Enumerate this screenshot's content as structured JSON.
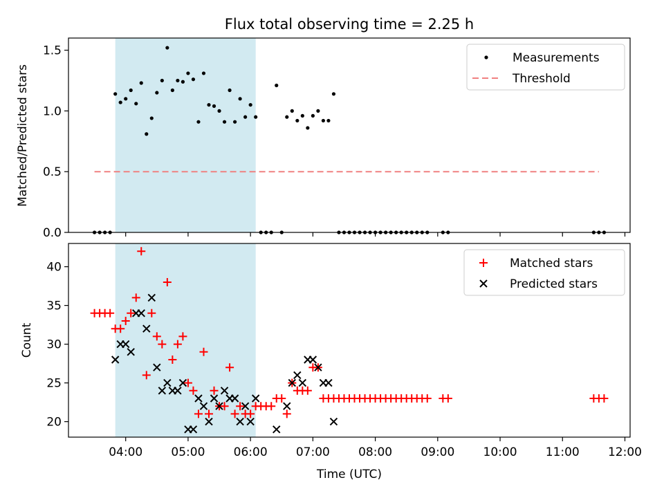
{
  "chart_data": [
    {
      "type": "scatter",
      "title": "Flux total observing time = 2.25 h",
      "xlabel": "",
      "ylabel": "Matched/Predicted stars",
      "xlim": [
        "03:05",
        "12:05"
      ],
      "ylim": [
        0,
        1.6
      ],
      "yticks": [
        0.0,
        0.5,
        1.0,
        1.5
      ],
      "ytick_labels": [
        "0.0",
        "0.5",
        "1.0",
        "1.5"
      ],
      "legend_position": "upper-right",
      "shaded_span": {
        "start": "03:50",
        "end": "06:05",
        "color": "#add8e6"
      },
      "series": [
        {
          "name": "Measurements",
          "kind": "point",
          "color": "#000000",
          "points": [
            [
              "03:30",
              0
            ],
            [
              "03:35",
              0
            ],
            [
              "03:40",
              0
            ],
            [
              "03:45",
              0
            ],
            [
              "03:50",
              1.14
            ],
            [
              "03:55",
              1.07
            ],
            [
              "04:00",
              1.1
            ],
            [
              "04:05",
              1.17
            ],
            [
              "04:10",
              1.06
            ],
            [
              "04:15",
              1.23
            ],
            [
              "04:20",
              0.81
            ],
            [
              "04:25",
              0.94
            ],
            [
              "04:30",
              1.15
            ],
            [
              "04:35",
              1.25
            ],
            [
              "04:40",
              1.52
            ],
            [
              "04:45",
              1.17
            ],
            [
              "04:50",
              1.25
            ],
            [
              "04:55",
              1.24
            ],
            [
              "05:00",
              1.31
            ],
            [
              "05:05",
              1.26
            ],
            [
              "05:10",
              0.91
            ],
            [
              "05:15",
              1.31
            ],
            [
              "05:20",
              1.05
            ],
            [
              "05:25",
              1.04
            ],
            [
              "05:30",
              1.0
            ],
            [
              "05:35",
              0.91
            ],
            [
              "05:40",
              1.17
            ],
            [
              "05:45",
              0.91
            ],
            [
              "05:50",
              1.1
            ],
            [
              "05:55",
              0.95
            ],
            [
              "06:00",
              1.05
            ],
            [
              "06:05",
              0.95
            ],
            [
              "06:10",
              0
            ],
            [
              "06:15",
              0
            ],
            [
              "06:20",
              0
            ],
            [
              "06:25",
              1.21
            ],
            [
              "06:30",
              0
            ],
            [
              "06:35",
              0.95
            ],
            [
              "06:40",
              1.0
            ],
            [
              "06:45",
              0.92
            ],
            [
              "06:50",
              0.96
            ],
            [
              "06:55",
              0.86
            ],
            [
              "07:00",
              0.96
            ],
            [
              "07:05",
              1.0
            ],
            [
              "07:10",
              0.92
            ],
            [
              "07:15",
              0.92
            ],
            [
              "07:20",
              1.14
            ],
            [
              "07:25",
              0
            ],
            [
              "07:30",
              0
            ],
            [
              "07:35",
              0
            ],
            [
              "07:40",
              0
            ],
            [
              "07:45",
              0
            ],
            [
              "07:50",
              0
            ],
            [
              "07:55",
              0
            ],
            [
              "08:00",
              0
            ],
            [
              "08:05",
              0
            ],
            [
              "08:10",
              0
            ],
            [
              "08:15",
              0
            ],
            [
              "08:20",
              0
            ],
            [
              "08:25",
              0
            ],
            [
              "08:30",
              0
            ],
            [
              "08:35",
              0
            ],
            [
              "08:40",
              0
            ],
            [
              "08:45",
              0
            ],
            [
              "08:50",
              0
            ],
            [
              "09:05",
              0
            ],
            [
              "09:10",
              0
            ],
            [
              "11:30",
              0
            ],
            [
              "11:35",
              0
            ],
            [
              "11:40",
              0
            ]
          ]
        },
        {
          "name": "Threshold",
          "kind": "dashed-line",
          "color": "#f08080",
          "points": [
            [
              "03:30",
              0.5
            ],
            [
              "11:35",
              0.5
            ]
          ]
        }
      ]
    },
    {
      "type": "scatter",
      "title": "",
      "xlabel": "Time (UTC)",
      "ylabel": "Count",
      "xlim": [
        "03:05",
        "12:05"
      ],
      "ylim": [
        18,
        43
      ],
      "yticks": [
        20,
        25,
        30,
        35,
        40
      ],
      "ytick_labels": [
        "20",
        "25",
        "30",
        "35",
        "40"
      ],
      "xticks": [
        "04:00",
        "05:00",
        "06:00",
        "07:00",
        "08:00",
        "09:00",
        "10:00",
        "11:00",
        "12:00"
      ],
      "xtick_labels": [
        "04:00",
        "05:00",
        "06:00",
        "07:00",
        "08:00",
        "09:00",
        "10:00",
        "11:00",
        "12:00"
      ],
      "legend_position": "upper-right",
      "shaded_span": {
        "start": "03:50",
        "end": "06:05",
        "color": "#add8e6"
      },
      "series": [
        {
          "name": "Matched stars",
          "kind": "plus",
          "color": "#ff0000",
          "points": [
            [
              "03:30",
              34
            ],
            [
              "03:35",
              34
            ],
            [
              "03:40",
              34
            ],
            [
              "03:45",
              34
            ],
            [
              "03:50",
              32
            ],
            [
              "03:55",
              32
            ],
            [
              "04:00",
              33
            ],
            [
              "04:05",
              34
            ],
            [
              "04:10",
              36
            ],
            [
              "04:15",
              42
            ],
            [
              "04:20",
              26
            ],
            [
              "04:25",
              34
            ],
            [
              "04:30",
              31
            ],
            [
              "04:35",
              30
            ],
            [
              "04:40",
              38
            ],
            [
              "04:45",
              28
            ],
            [
              "04:50",
              30
            ],
            [
              "04:55",
              31
            ],
            [
              "05:00",
              25
            ],
            [
              "05:05",
              24
            ],
            [
              "05:10",
              21
            ],
            [
              "05:15",
              29
            ],
            [
              "05:20",
              21
            ],
            [
              "05:25",
              24
            ],
            [
              "05:30",
              22
            ],
            [
              "05:35",
              22
            ],
            [
              "05:40",
              27
            ],
            [
              "05:45",
              21
            ],
            [
              "05:50",
              22
            ],
            [
              "05:55",
              21
            ],
            [
              "06:00",
              21
            ],
            [
              "06:05",
              22
            ],
            [
              "06:10",
              22
            ],
            [
              "06:15",
              22
            ],
            [
              "06:20",
              22
            ],
            [
              "06:25",
              23
            ],
            [
              "06:30",
              23
            ],
            [
              "06:35",
              21
            ],
            [
              "06:40",
              25
            ],
            [
              "06:45",
              24
            ],
            [
              "06:50",
              24
            ],
            [
              "06:55",
              24
            ],
            [
              "07:00",
              27
            ],
            [
              "07:05",
              27
            ],
            [
              "07:10",
              23
            ],
            [
              "07:15",
              23
            ],
            [
              "07:20",
              23
            ],
            [
              "07:25",
              23
            ],
            [
              "07:30",
              23
            ],
            [
              "07:35",
              23
            ],
            [
              "07:40",
              23
            ],
            [
              "07:45",
              23
            ],
            [
              "07:50",
              23
            ],
            [
              "07:55",
              23
            ],
            [
              "08:00",
              23
            ],
            [
              "08:05",
              23
            ],
            [
              "08:10",
              23
            ],
            [
              "08:15",
              23
            ],
            [
              "08:20",
              23
            ],
            [
              "08:25",
              23
            ],
            [
              "08:30",
              23
            ],
            [
              "08:35",
              23
            ],
            [
              "08:40",
              23
            ],
            [
              "08:45",
              23
            ],
            [
              "08:50",
              23
            ],
            [
              "09:05",
              23
            ],
            [
              "09:10",
              23
            ],
            [
              "11:30",
              23
            ],
            [
              "11:35",
              23
            ],
            [
              "11:40",
              23
            ]
          ]
        },
        {
          "name": "Predicted stars",
          "kind": "cross",
          "color": "#000000",
          "points": [
            [
              "03:50",
              28
            ],
            [
              "03:55",
              30
            ],
            [
              "04:00",
              30
            ],
            [
              "04:05",
              29
            ],
            [
              "04:10",
              34
            ],
            [
              "04:15",
              34
            ],
            [
              "04:20",
              32
            ],
            [
              "04:25",
              36
            ],
            [
              "04:30",
              27
            ],
            [
              "04:35",
              24
            ],
            [
              "04:40",
              25
            ],
            [
              "04:45",
              24
            ],
            [
              "04:50",
              24
            ],
            [
              "04:55",
              25
            ],
            [
              "05:00",
              19
            ],
            [
              "05:05",
              19
            ],
            [
              "05:10",
              23
            ],
            [
              "05:15",
              22
            ],
            [
              "05:20",
              20
            ],
            [
              "05:25",
              23
            ],
            [
              "05:30",
              22
            ],
            [
              "05:35",
              24
            ],
            [
              "05:40",
              23
            ],
            [
              "05:45",
              23
            ],
            [
              "05:50",
              20
            ],
            [
              "05:55",
              22
            ],
            [
              "06:00",
              20
            ],
            [
              "06:05",
              23
            ],
            [
              "06:25",
              19
            ],
            [
              "06:35",
              22
            ],
            [
              "06:40",
              25
            ],
            [
              "06:45",
              26
            ],
            [
              "06:50",
              25
            ],
            [
              "06:55",
              28
            ],
            [
              "07:00",
              28
            ],
            [
              "07:05",
              27
            ],
            [
              "07:10",
              25
            ],
            [
              "07:15",
              25
            ],
            [
              "07:20",
              20
            ]
          ]
        }
      ]
    }
  ]
}
